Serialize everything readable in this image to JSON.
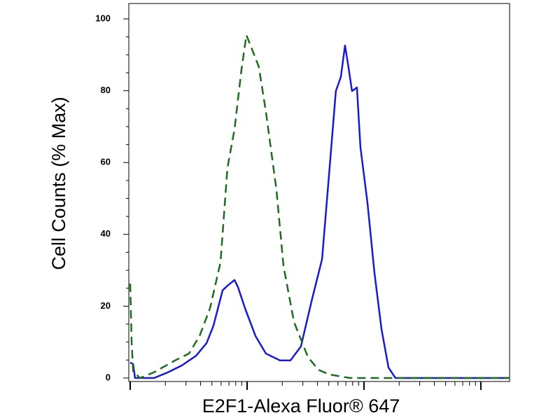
{
  "chart_data": {
    "type": "line",
    "x_label": "E2F1-Alexa Fluor® 647",
    "y_label": "Cell Counts (% Max)",
    "log_x": true,
    "xlim": [
      10,
      17620
    ],
    "xticks": [
      10,
      100,
      1000,
      10000
    ],
    "ylim": [
      0,
      100
    ],
    "yticks": [
      0,
      20,
      40,
      60,
      80,
      100
    ],
    "series": [
      {
        "color": "#1a1acc",
        "dashed": false,
        "x": [
          10,
          10.6,
          11.0,
          12.1,
          16.0,
          21.1,
          27.7,
          36.6,
          45.0,
          51.6,
          61.7,
          67.9,
          78.0,
          83.6,
          95.9,
          118,
          145,
          191,
          235,
          289,
          356,
          438,
          502,
          575,
          634,
          689,
          728,
          791,
          871,
          933,
          1072,
          1230,
          1413,
          1622,
          1858,
          3013,
          17620
        ],
        "values": [
          4.3,
          3.9,
          0,
          0,
          0,
          1.6,
          3.5,
          6.2,
          9.7,
          14.6,
          24.4,
          25.7,
          27.3,
          25.3,
          19.5,
          11.7,
          6.8,
          4.9,
          4.9,
          8.8,
          21.4,
          33.1,
          56.5,
          79.9,
          83.8,
          92.6,
          87.7,
          79.9,
          80.9,
          64.3,
          48.7,
          29.2,
          13.6,
          2.9,
          0,
          0,
          0
        ]
      },
      {
        "color": "#1f6b1f",
        "dashed": true,
        "x": [
          10,
          10.3,
          10.6,
          12.1,
          16.0,
          24.2,
          31.8,
          39.2,
          48.2,
          59.2,
          67.9,
          78.0,
          89.5,
          98.6,
          110,
          126,
          145,
          178,
          205,
          252,
          332,
          408,
          502,
          759,
          17620
        ],
        "values": [
          26.3,
          9.7,
          1.9,
          0,
          1.6,
          4.9,
          6.8,
          11.7,
          19.5,
          32.2,
          58.5,
          69.2,
          85.8,
          95.5,
          91.6,
          86.7,
          74.1,
          52.6,
          31.2,
          15.6,
          5.8,
          2.3,
          1,
          0,
          0
        ]
      }
    ]
  }
}
